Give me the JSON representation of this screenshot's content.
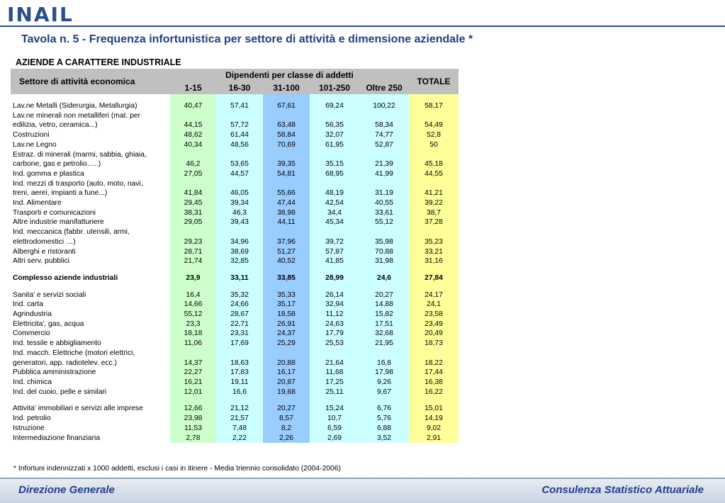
{
  "logo": "INAIL",
  "title": "Tavola n. 5 - Frequenza infortunistica per settore di attività e dimensione aziendale *",
  "section": "AZIENDE A CARATTERE INDUSTRIALE",
  "header": {
    "sector": "Settore di attività economica",
    "group": "Dipendenti per classe di addetti",
    "classes": [
      "1-15",
      "16-30",
      "31-100",
      "101-250",
      "Oltre 250"
    ],
    "total": "TOTALE"
  },
  "rows": [
    {
      "type": "spacer"
    },
    {
      "label": "Lav.ne Metalli (Siderurgia, Metallurgia)",
      "values": [
        "40,47",
        "57,41",
        "67,61",
        "69,24",
        "100,22",
        "58,17"
      ]
    },
    {
      "label": "Lav.ne minerali non metalliferi (mat. per",
      "label2": "edilizia, vetro, ceramica...)",
      "values": [
        "44,15",
        "57,72",
        "63,48",
        "56,35",
        "58,34",
        "54,49"
      ]
    },
    {
      "label": "Costruzioni",
      "values": [
        "48,62",
        "61,44",
        "58,84",
        "32,07",
        "74,77",
        "52,8"
      ]
    },
    {
      "label": "Lav.ne Legno",
      "values": [
        "40,34",
        "48,56",
        "70,69",
        "61,95",
        "52,87",
        "50"
      ]
    },
    {
      "label": "Estraz. di minerali (marmi, sabbia, ghiaia,",
      "label2": "carbone, gas e petrolio…..)",
      "values": [
        "46,2",
        "53,65",
        "39,35",
        "35,15",
        "21,39",
        "45,18"
      ]
    },
    {
      "label": "Ind. gomma  e plastica",
      "values": [
        "27,05",
        "44,57",
        "54,81",
        "68,95",
        "41,99",
        "44,55"
      ]
    },
    {
      "label": "Ind. mezzi di trasporto (auto, moto, navi,",
      "label2": "treni, aerei, impianti a fune...)",
      "values": [
        "41,84",
        "46,05",
        "55,66",
        "48,19",
        "31,19",
        "41,21"
      ]
    },
    {
      "label": "Ind. Alimentare",
      "values": [
        "29,45",
        "39,34",
        "47,44",
        "42,54",
        "40,55",
        "39,22"
      ]
    },
    {
      "label": "Trasporti e comunicazioni",
      "values": [
        "38,31",
        "46,3",
        "38,98",
        "34,4",
        "33,61",
        "38,7"
      ]
    },
    {
      "label": "Altre industrie manifatturiere",
      "values": [
        "29,05",
        "39,43",
        "44,11",
        "45,34",
        "55,12",
        "37,28"
      ]
    },
    {
      "label": "Ind. meccanica (fabbr. utensili, armi,",
      "label2": "elettrodomestici …)",
      "values": [
        "29,23",
        "34,96",
        "37,96",
        "39,72",
        "35,98",
        "35,23"
      ]
    },
    {
      "label": "Alberghi e ristoranti",
      "values": [
        "28,71",
        "38,69",
        "51,27",
        "57,87",
        "70,88",
        "33,21"
      ]
    },
    {
      "label": "Altri serv. pubblici",
      "values": [
        "21,74",
        "32,85",
        "40,52",
        "41,85",
        "31,98",
        "31,16"
      ]
    },
    {
      "type": "spacer"
    },
    {
      "label": "Complesso aziende industriali",
      "bold": true,
      "values": [
        "23,9",
        "33,11",
        "33,85",
        "28,99",
        "24,6",
        "27,84"
      ]
    },
    {
      "type": "spacer"
    },
    {
      "label": "Sanita' e servizi sociali",
      "values": [
        "16,4",
        "35,32",
        "35,33",
        "26,14",
        "20,27",
        "24,17"
      ]
    },
    {
      "label": "Ind. carta",
      "values": [
        "14,66",
        "24,66",
        "35,17",
        "32,94",
        "14,88",
        "24,1"
      ]
    },
    {
      "label": "Agrindustria",
      "values": [
        "55,12",
        "28,67",
        "18,58",
        "11,12",
        "15,82",
        "23,58"
      ]
    },
    {
      "label": "Elettricita', gas, acqua",
      "values": [
        "23,3",
        "22,71",
        "26,91",
        "24,63",
        "17,51",
        "23,49"
      ]
    },
    {
      "label": "Commercio",
      "values": [
        "18,18",
        "23,31",
        "24,37",
        "17,79",
        "32,68",
        "20,49"
      ]
    },
    {
      "label": "Ind. tessile e abbigliamento",
      "values": [
        "11,06",
        "17,69",
        "25,29",
        "25,53",
        "21,95",
        "18,73"
      ]
    },
    {
      "label": "Ind. macch. Elettriche (motori elettrici,",
      "label2": "generatori, app. radiotelev. ecc.)",
      "values": [
        "14,37",
        "18,63",
        "20,88",
        "21,64",
        "16,8",
        "18,22"
      ]
    },
    {
      "label": "Pubblica amministrazione",
      "values": [
        "22,27",
        "17,83",
        "16,17",
        "11,68",
        "17,98",
        "17,44"
      ]
    },
    {
      "label": "Ind. chimica",
      "values": [
        "16,21",
        "19,11",
        "20,87",
        "17,25",
        "9,26",
        "16,38"
      ]
    },
    {
      "label": "Ind. del cuoio, pelle e similari",
      "values": [
        "12,01",
        "16,6",
        "19,68",
        "25,11",
        "9,67",
        "16,22"
      ]
    },
    {
      "type": "spacer"
    },
    {
      "label": "Attivita' immobiliari e servizi alle imprese",
      "values": [
        "12,66",
        "21,12",
        "20,27",
        "15,24",
        "6,76",
        "15,01"
      ]
    },
    {
      "label": "Ind. petrolio",
      "values": [
        "23,98",
        "21,57",
        "8,57",
        "10,7",
        "5,76",
        "14,19"
      ]
    },
    {
      "label": "Istruzione",
      "values": [
        "11,53",
        "7,48",
        "8,2",
        "6,59",
        "6,88",
        "9,02"
      ]
    },
    {
      "label": "Intermediazione finanziaria",
      "values": [
        "2,78",
        "2,22",
        "2,26",
        "2,69",
        "3,52",
        "2,91"
      ]
    }
  ],
  "footnote": "*  Infortuni indennizzati x 1000 addetti, esclusi i casi in itinere - Media triennio consolidato (2004-2006)",
  "footer": {
    "left": "Direzione Generale",
    "right": "Consulenza Statistico Attuariale"
  },
  "colors": {
    "title": "#1f3f86",
    "header_bg": "#c0c0c0",
    "col_1_15": "#ccffcc",
    "col_16_30": "#ccffff",
    "col_31_100": "#99ccff",
    "col_101_250": "#ccffff",
    "col_oltre_250": "#ccffff",
    "col_totale": "#ffff99"
  }
}
